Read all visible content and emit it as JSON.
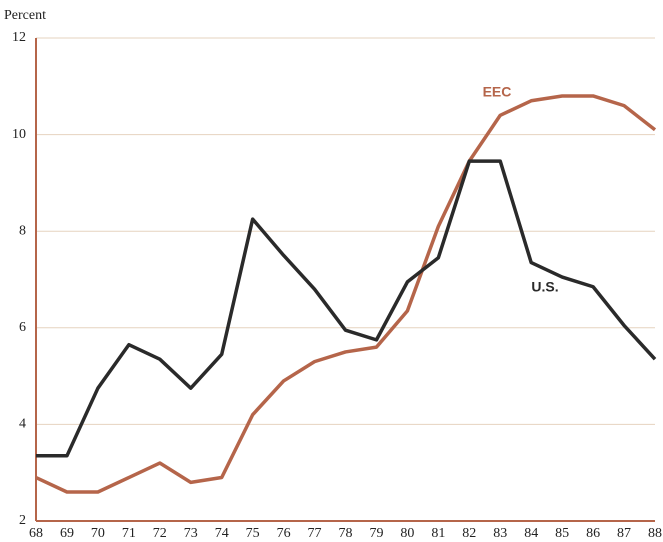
{
  "chart_data": {
    "type": "line",
    "y_label": "Percent",
    "categories": [
      "68",
      "69",
      "70",
      "71",
      "72",
      "73",
      "74",
      "75",
      "76",
      "77",
      "78",
      "79",
      "80",
      "81",
      "82",
      "83",
      "84",
      "85",
      "86",
      "87",
      "88"
    ],
    "series": [
      {
        "name": "EEC",
        "color": "#b5654a",
        "values": [
          2.9,
          2.6,
          2.6,
          2.9,
          3.2,
          2.8,
          2.9,
          4.2,
          4.9,
          5.3,
          5.5,
          5.6,
          6.35,
          8.1,
          9.45,
          10.4,
          10.7,
          10.8,
          10.8,
          10.6,
          10.1
        ]
      },
      {
        "name": "U.S.",
        "color": "#2a2a2a",
        "values": [
          3.35,
          3.35,
          4.75,
          5.65,
          5.35,
          4.75,
          5.45,
          8.25,
          7.5,
          6.8,
          5.95,
          5.75,
          6.95,
          7.45,
          9.45,
          9.45,
          7.35,
          7.05,
          6.85,
          6.05,
          5.35
        ]
      }
    ],
    "ylim": [
      2,
      12
    ],
    "yticks": [
      2,
      4,
      6,
      8,
      10,
      12
    ],
    "grid": true
  }
}
